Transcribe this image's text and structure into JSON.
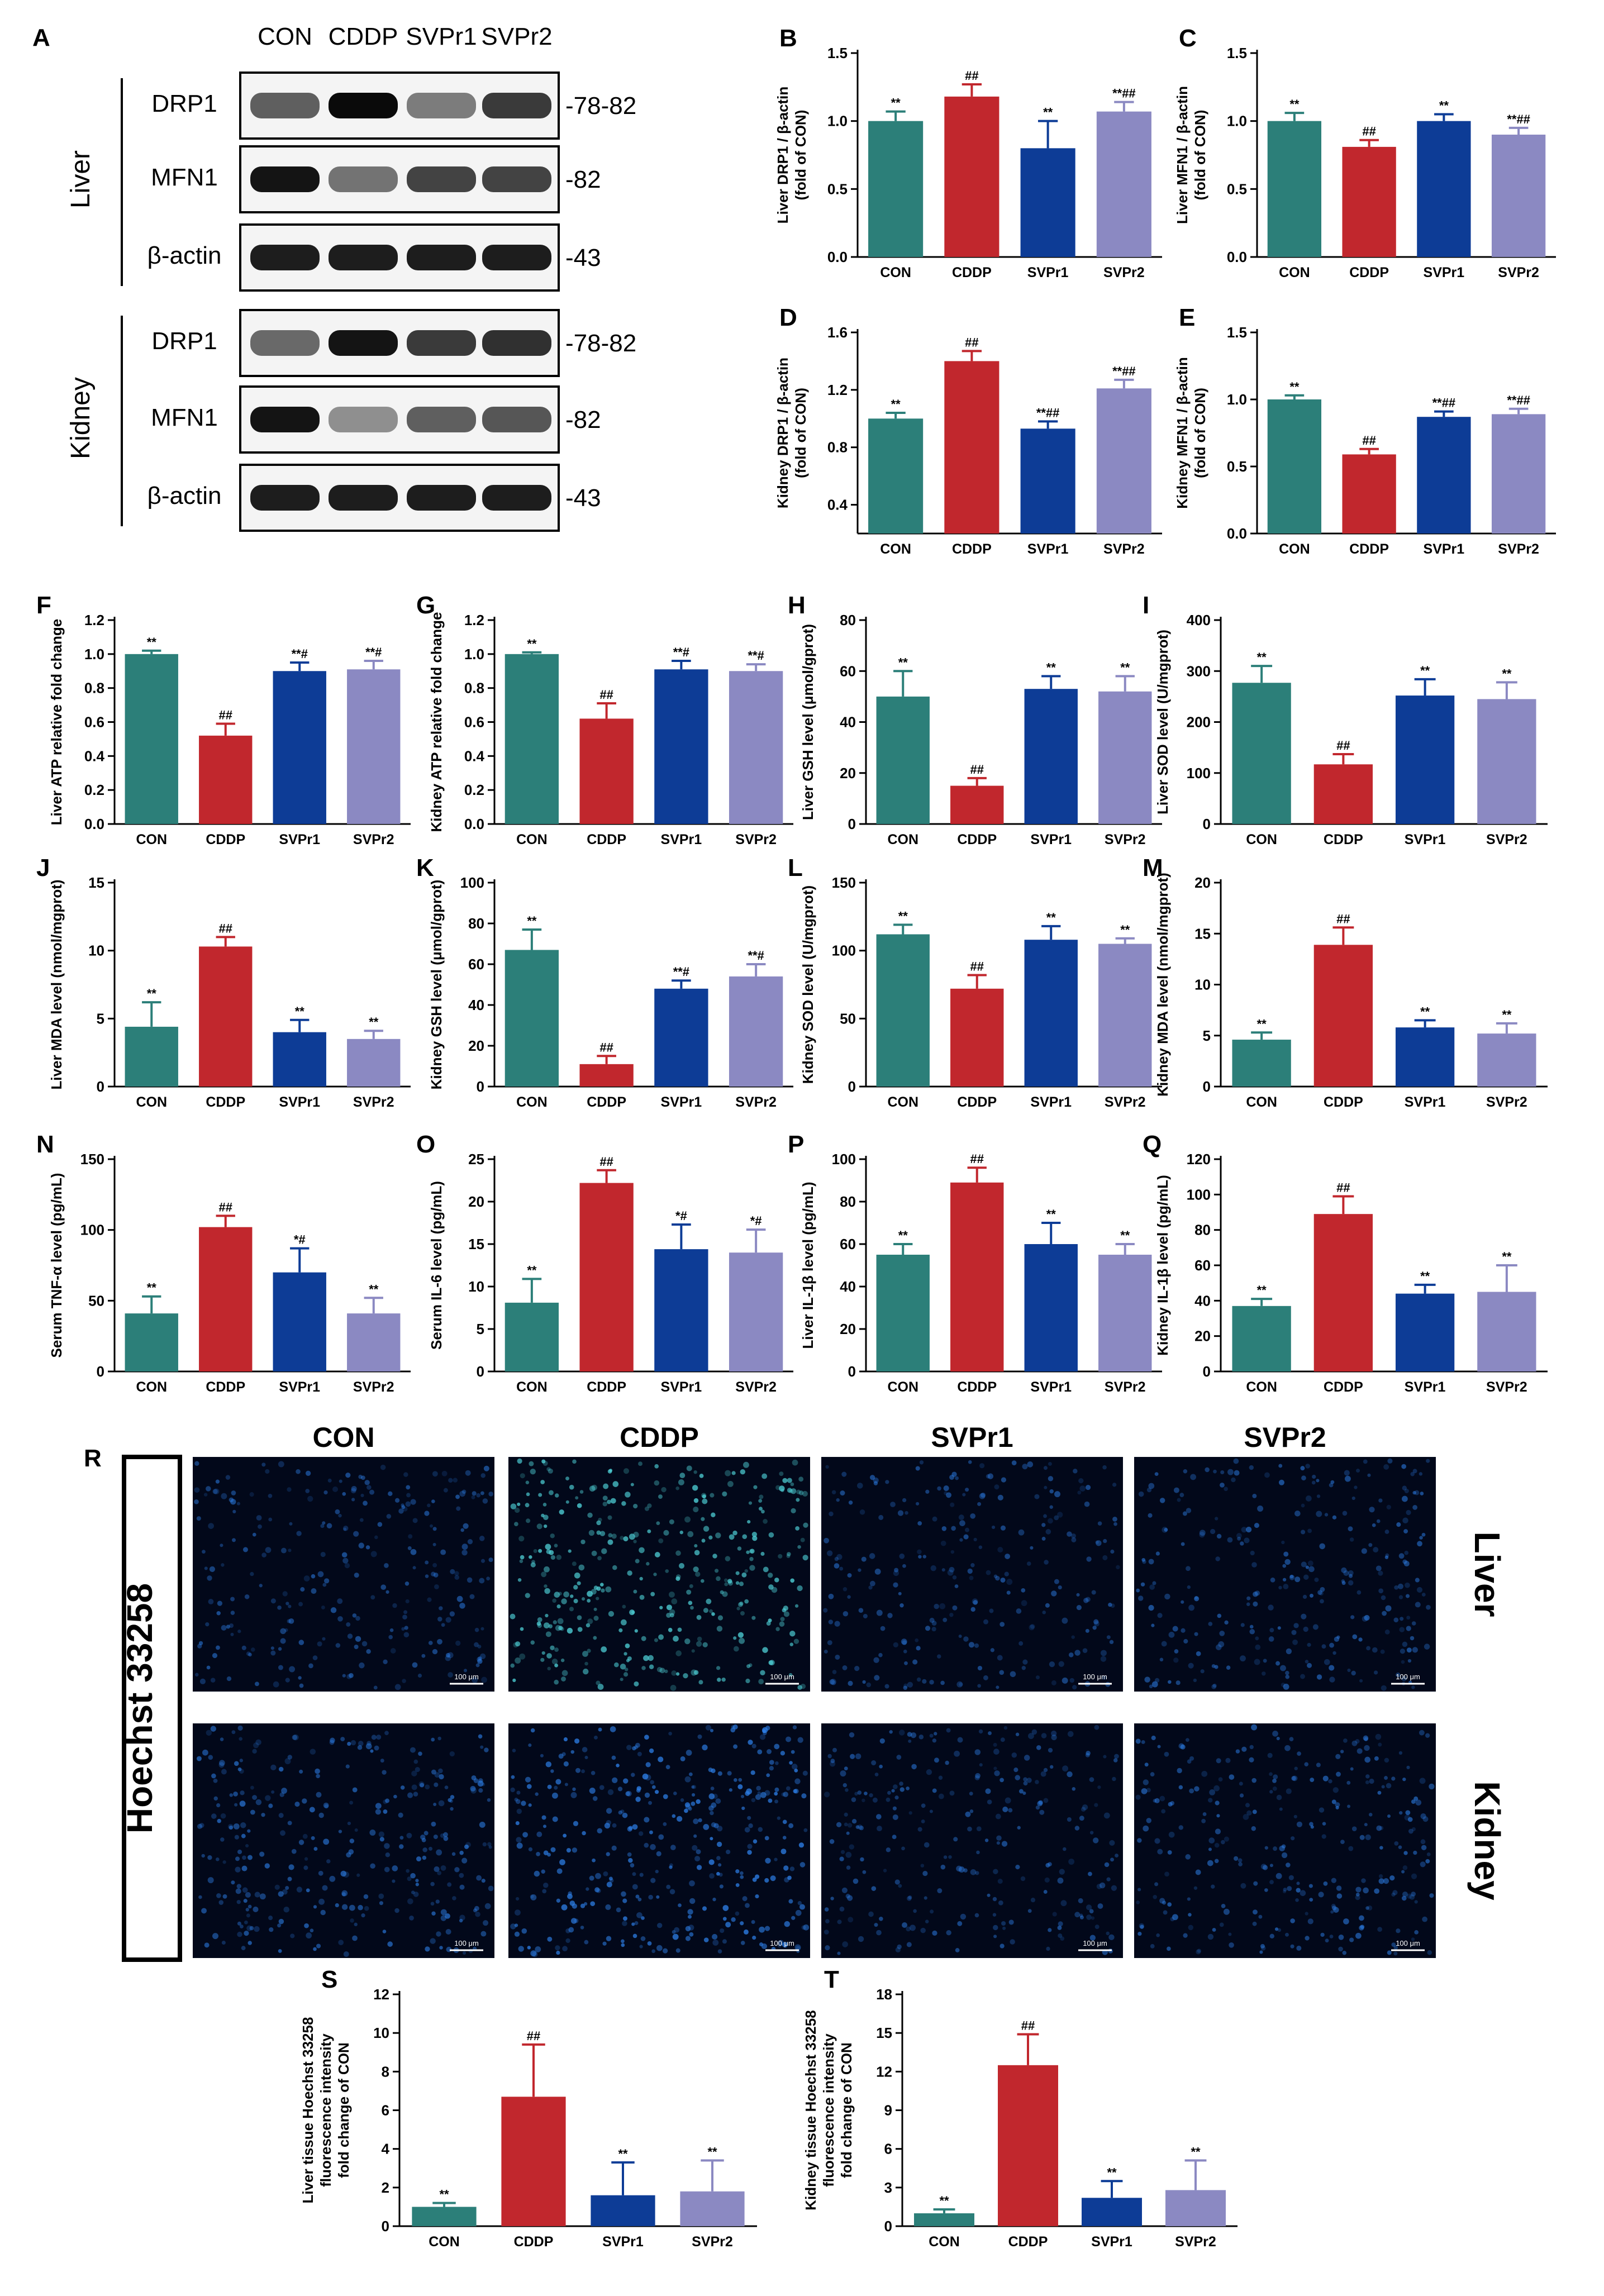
{
  "figure": {
    "groups": [
      "CON",
      "CDDP",
      "SVPr1",
      "SVPr2"
    ],
    "colors": {
      "CON": "#2c7f79",
      "CDDP": "#c1272d",
      "SVPr1": "#0d3c96",
      "SVPr2": "#8b89c2"
    }
  },
  "blot": {
    "panel_letter": "A",
    "lane_labels": [
      "CON",
      "CDDP",
      "SVPr1",
      "SVPr2"
    ],
    "tissues": [
      {
        "name": "Liver",
        "rows": [
          {
            "protein": "DRP1",
            "kda": "-78-82",
            "intensity": [
              0.55,
              1.0,
              0.4,
              0.75
            ]
          },
          {
            "protein": "MFN1",
            "kda": "-82",
            "intensity": [
              0.95,
              0.45,
              0.7,
              0.7
            ]
          },
          {
            "protein": "β-actin",
            "kda": "-43",
            "intensity": [
              0.9,
              0.9,
              0.9,
              0.9
            ]
          }
        ]
      },
      {
        "name": "Kidney",
        "rows": [
          {
            "protein": "DRP1",
            "kda": "-78-82",
            "intensity": [
              0.5,
              0.95,
              0.75,
              0.8
            ]
          },
          {
            "protein": "MFN1",
            "kda": "-82",
            "intensity": [
              0.95,
              0.3,
              0.55,
              0.6
            ]
          },
          {
            "protein": "β-actin",
            "kda": "-43",
            "intensity": [
              0.9,
              0.9,
              0.9,
              0.9
            ]
          }
        ]
      }
    ]
  },
  "chart_data": [
    {
      "type": "bar",
      "panel": "B",
      "ylabel": [
        "Liver DRP1 / β-actin",
        "(fold of CON)"
      ],
      "ylim": [
        0,
        1.5
      ],
      "ticks": [
        "0.0",
        "0.5",
        "1.0",
        "1.5"
      ],
      "categories": [
        "CON",
        "CDDP",
        "SVPr1",
        "SVPr2"
      ],
      "values": [
        1.0,
        1.18,
        0.8,
        1.07
      ],
      "errors": [
        0.07,
        0.09,
        0.2,
        0.07
      ],
      "annotations": [
        "**",
        "##",
        "**",
        "**##"
      ]
    },
    {
      "type": "bar",
      "panel": "C",
      "ylabel": [
        "Liver MFN1 / β-actin",
        "(fold of CON)"
      ],
      "ylim": [
        0,
        1.5
      ],
      "ticks": [
        "0.0",
        "0.5",
        "1.0",
        "1.5"
      ],
      "categories": [
        "CON",
        "CDDP",
        "SVPr1",
        "SVPr2"
      ],
      "values": [
        1.0,
        0.81,
        1.0,
        0.9
      ],
      "errors": [
        0.06,
        0.05,
        0.05,
        0.05
      ],
      "annotations": [
        "**",
        "##",
        "**",
        "**##"
      ]
    },
    {
      "type": "bar",
      "panel": "D",
      "ylabel": [
        "Kidney DRP1 / β-actin",
        "(fold of CON)"
      ],
      "ylim": [
        0.2,
        1.6
      ],
      "ticks": [
        "0.4",
        "0.8",
        "1.2",
        "1.6"
      ],
      "categories": [
        "CON",
        "CDDP",
        "SVPr1",
        "SVPr2"
      ],
      "values": [
        1.0,
        1.4,
        0.93,
        1.21
      ],
      "errors": [
        0.04,
        0.07,
        0.05,
        0.06
      ],
      "annotations": [
        "**",
        "##",
        "**##",
        "**##"
      ]
    },
    {
      "type": "bar",
      "panel": "E",
      "ylabel": [
        "Kidney MFN1 / β-actin",
        "(fold of CON)"
      ],
      "ylim": [
        0,
        1.5
      ],
      "ticks": [
        "0.0",
        "0.5",
        "1.0",
        "1.5"
      ],
      "categories": [
        "CON",
        "CDDP",
        "SVPr1",
        "SVPr2"
      ],
      "values": [
        1.0,
        0.59,
        0.87,
        0.89
      ],
      "errors": [
        0.03,
        0.04,
        0.04,
        0.04
      ],
      "annotations": [
        "**",
        "##",
        "**##",
        "**##"
      ]
    },
    {
      "type": "bar",
      "panel": "F",
      "ylabel": [
        "Liver ATP relative fold change"
      ],
      "ylim": [
        0,
        1.2
      ],
      "ticks": [
        "0.0",
        "0.2",
        "0.4",
        "0.6",
        "0.8",
        "1.0",
        "1.2"
      ],
      "categories": [
        "CON",
        "CDDP",
        "SVPr1",
        "SVPr2"
      ],
      "values": [
        1.0,
        0.52,
        0.9,
        0.91
      ],
      "errors": [
        0.02,
        0.07,
        0.05,
        0.05
      ],
      "annotations": [
        "**",
        "##",
        "**#",
        "**#"
      ]
    },
    {
      "type": "bar",
      "panel": "G",
      "ylabel": [
        "Kidney ATP relative fold change"
      ],
      "ylim": [
        0,
        1.2
      ],
      "ticks": [
        "0.0",
        "0.2",
        "0.4",
        "0.6",
        "0.8",
        "1.0",
        "1.2"
      ],
      "categories": [
        "CON",
        "CDDP",
        "SVPr1",
        "SVPr2"
      ],
      "values": [
        1.0,
        0.62,
        0.91,
        0.9
      ],
      "errors": [
        0.01,
        0.09,
        0.05,
        0.04
      ],
      "annotations": [
        "**",
        "##",
        "**#",
        "**#"
      ]
    },
    {
      "type": "bar",
      "panel": "H",
      "ylabel": [
        "Liver GSH level (μmol/gprot)"
      ],
      "ylim": [
        0,
        80
      ],
      "ticks": [
        "0",
        "20",
        "40",
        "60",
        "80"
      ],
      "categories": [
        "CON",
        "CDDP",
        "SVPr1",
        "SVPr2"
      ],
      "values": [
        50,
        15,
        53,
        52
      ],
      "errors": [
        10,
        3,
        5,
        6
      ],
      "annotations": [
        "**",
        "##",
        "**",
        "**"
      ]
    },
    {
      "type": "bar",
      "panel": "I",
      "ylabel": [
        "Liver SOD level (U/mgprot)"
      ],
      "ylim": [
        0,
        400
      ],
      "ticks": [
        "0",
        "100",
        "200",
        "300",
        "400"
      ],
      "categories": [
        "CON",
        "CDDP",
        "SVPr1",
        "SVPr2"
      ],
      "values": [
        277,
        117,
        252,
        245
      ],
      "errors": [
        33,
        20,
        32,
        33
      ],
      "annotations": [
        "**",
        "##",
        "**",
        "**"
      ]
    },
    {
      "type": "bar",
      "panel": "J",
      "ylabel": [
        "Liver MDA level (nmol/mgprot)"
      ],
      "ylim": [
        0,
        15
      ],
      "ticks": [
        "0",
        "5",
        "10",
        "15"
      ],
      "categories": [
        "CON",
        "CDDP",
        "SVPr1",
        "SVPr2"
      ],
      "values": [
        4.4,
        10.3,
        4.0,
        3.5
      ],
      "errors": [
        1.8,
        0.7,
        0.9,
        0.6
      ],
      "annotations": [
        "**",
        "##",
        "**",
        "**"
      ]
    },
    {
      "type": "bar",
      "panel": "K",
      "ylabel": [
        "Kidney GSH level (μmol/gprot)"
      ],
      "ylim": [
        0,
        100
      ],
      "ticks": [
        "0",
        "20",
        "40",
        "60",
        "80",
        "100"
      ],
      "categories": [
        "CON",
        "CDDP",
        "SVPr1",
        "SVPr2"
      ],
      "values": [
        67,
        11,
        48,
        54
      ],
      "errors": [
        10,
        4,
        4,
        6
      ],
      "annotations": [
        "**",
        "##",
        "**#",
        "**#"
      ]
    },
    {
      "type": "bar",
      "panel": "L",
      "ylabel": [
        "Kidney SOD level (U/mgprot)"
      ],
      "ylim": [
        0,
        150
      ],
      "ticks": [
        "0",
        "50",
        "100",
        "150"
      ],
      "categories": [
        "CON",
        "CDDP",
        "SVPr1",
        "SVPr2"
      ],
      "values": [
        112,
        72,
        108,
        105
      ],
      "errors": [
        7,
        10,
        10,
        4
      ],
      "annotations": [
        "**",
        "##",
        "**",
        "**"
      ]
    },
    {
      "type": "bar",
      "panel": "M",
      "ylabel": [
        "Kidney MDA level (nmol/mgprot)"
      ],
      "ylim": [
        0,
        20
      ],
      "ticks": [
        "0",
        "5",
        "10",
        "15",
        "20"
      ],
      "categories": [
        "CON",
        "CDDP",
        "SVPr1",
        "SVPr2"
      ],
      "values": [
        4.6,
        13.9,
        5.8,
        5.2
      ],
      "errors": [
        0.7,
        1.7,
        0.7,
        1.0
      ],
      "annotations": [
        "**",
        "##",
        "**",
        "**"
      ]
    },
    {
      "type": "bar",
      "panel": "N",
      "ylabel": [
        "Serum TNF-α level (pg/mL)"
      ],
      "ylim": [
        0,
        150
      ],
      "ticks": [
        "0",
        "50",
        "100",
        "150"
      ],
      "categories": [
        "CON",
        "CDDP",
        "SVPr1",
        "SVPr2"
      ],
      "values": [
        41,
        102,
        70,
        41
      ],
      "errors": [
        12,
        8,
        17,
        11
      ],
      "annotations": [
        "**",
        "##",
        "*#",
        "**"
      ]
    },
    {
      "type": "bar",
      "panel": "O",
      "ylabel": [
        "Serum IL-6 level (pg/mL)"
      ],
      "ylim": [
        0,
        25
      ],
      "ticks": [
        "0",
        "5",
        "10",
        "15",
        "20",
        "25"
      ],
      "categories": [
        "CON",
        "CDDP",
        "SVPr1",
        "SVPr2"
      ],
      "values": [
        8.1,
        22.2,
        14.4,
        14.0
      ],
      "errors": [
        2.8,
        1.5,
        2.9,
        2.7
      ],
      "annotations": [
        "**",
        "##",
        "*#",
        "*#"
      ]
    },
    {
      "type": "bar",
      "panel": "P",
      "ylabel": [
        "Liver IL-1β level (pg/mL)"
      ],
      "ylim": [
        0,
        100
      ],
      "ticks": [
        "0",
        "20",
        "40",
        "60",
        "80",
        "100"
      ],
      "categories": [
        "CON",
        "CDDP",
        "SVPr1",
        "SVPr2"
      ],
      "values": [
        55,
        89,
        60,
        55
      ],
      "errors": [
        5,
        7,
        10,
        5
      ],
      "annotations": [
        "**",
        "##",
        "**",
        "**"
      ]
    },
    {
      "type": "bar",
      "panel": "Q",
      "ylabel": [
        "Kidney IL-1β level (pg/mL)"
      ],
      "ylim": [
        0,
        120
      ],
      "ticks": [
        "0",
        "20",
        "40",
        "60",
        "80",
        "100",
        "120"
      ],
      "categories": [
        "CON",
        "CDDP",
        "SVPr1",
        "SVPr2"
      ],
      "values": [
        37,
        89,
        44,
        45
      ],
      "errors": [
        4,
        10,
        5,
        15
      ],
      "annotations": [
        "**",
        "##",
        "**",
        "**"
      ]
    },
    {
      "type": "bar",
      "panel": "S",
      "ylabel": [
        "Liver tissue Hoechst 33258",
        "fluorescence intensity",
        "fold change of CON"
      ],
      "ylim": [
        0,
        12
      ],
      "ticks": [
        "0",
        "2",
        "4",
        "6",
        "8",
        "10",
        "12"
      ],
      "categories": [
        "CON",
        "CDDP",
        "SVPr1",
        "SVPr2"
      ],
      "values": [
        1.0,
        6.7,
        1.6,
        1.8
      ],
      "errors": [
        0.2,
        2.7,
        1.7,
        1.6
      ],
      "annotations": [
        "**",
        "##",
        "**",
        "**"
      ]
    },
    {
      "type": "bar",
      "panel": "T",
      "ylabel": [
        "Kidney tissue Hoechst 33258",
        "fluorescence intensity",
        "fold change of CON"
      ],
      "ylim": [
        0,
        18
      ],
      "ticks": [
        "0",
        "3",
        "6",
        "9",
        "12",
        "15",
        "18"
      ],
      "categories": [
        "CON",
        "CDDP",
        "SVPr1",
        "SVPr2"
      ],
      "values": [
        1.0,
        12.5,
        2.2,
        2.8
      ],
      "errors": [
        0.3,
        2.4,
        1.3,
        2.3
      ],
      "annotations": [
        "**",
        "##",
        "**",
        "**"
      ]
    }
  ],
  "micrographs": {
    "panel_letter": "R",
    "stain": "Hoechst 33258",
    "columns": [
      "CON",
      "CDDP",
      "SVPr1",
      "SVPr2"
    ],
    "rows": [
      "Liver",
      "Kidney"
    ],
    "scale_bar": "100 μm",
    "intensity": {
      "Liver": [
        0.35,
        0.8,
        0.3,
        0.4
      ],
      "Kidney": [
        0.55,
        0.8,
        0.35,
        0.45
      ]
    }
  }
}
